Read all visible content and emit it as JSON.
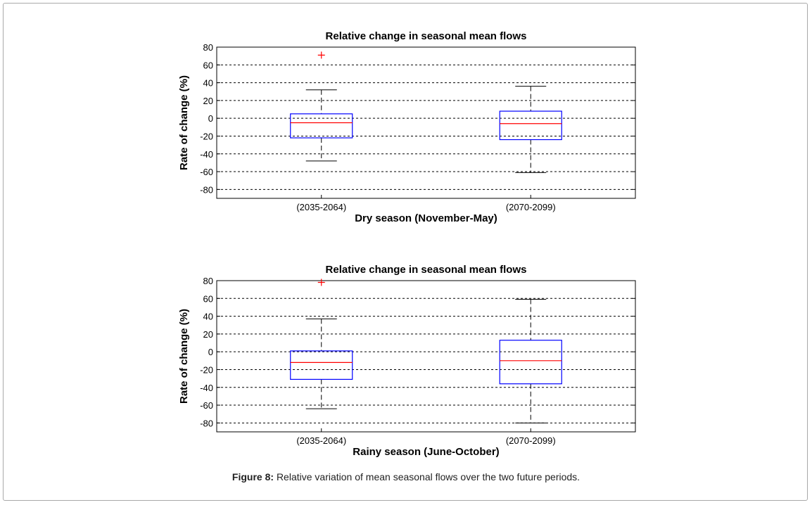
{
  "caption": {
    "label": "Figure 8:",
    "text": "Relative variation of mean seasonal flows over the two future periods."
  },
  "chart_data": [
    {
      "type": "box",
      "title": "Relative change in seasonal mean flows",
      "xlabel": "Dry season (November-May)",
      "ylabel": "Rate of change (%)",
      "ylim": [
        -90,
        80
      ],
      "yticks": [
        80,
        60,
        40,
        20,
        0,
        -20,
        -40,
        -60,
        -80
      ],
      "grid": "horizontal dashed",
      "categories": [
        "(2035-2064)",
        "(2070-2099)"
      ],
      "boxes": [
        {
          "whisker_low": -48,
          "q1": -22,
          "median": -5,
          "q3": 5,
          "whisker_high": 32,
          "outliers": [
            71
          ]
        },
        {
          "whisker_low": -61,
          "q1": -24,
          "median": -6,
          "q3": 8,
          "whisker_high": 36,
          "outliers": []
        }
      ],
      "colors": {
        "box": "#0000ff",
        "median": "#ff0000",
        "whisker": "#000000",
        "outlier": "#ff0000"
      }
    },
    {
      "type": "box",
      "title": "Relative change in seasonal mean flows",
      "xlabel": "Rainy season (June-October)",
      "ylabel": "Rate of change (%)",
      "ylim": [
        -90,
        80
      ],
      "yticks": [
        80,
        60,
        40,
        20,
        0,
        -20,
        -40,
        -60,
        -80
      ],
      "grid": "horizontal dashed",
      "categories": [
        "(2035-2064)",
        "(2070-2099)"
      ],
      "boxes": [
        {
          "whisker_low": -64,
          "q1": -31,
          "median": -12,
          "q3": 1,
          "whisker_high": 37,
          "outliers": [
            78
          ]
        },
        {
          "whisker_low": -80,
          "q1": -36,
          "median": -10,
          "q3": 13,
          "whisker_high": 59,
          "outliers": []
        }
      ],
      "colors": {
        "box": "#0000ff",
        "median": "#ff0000",
        "whisker": "#000000",
        "outlier": "#ff0000"
      }
    }
  ]
}
